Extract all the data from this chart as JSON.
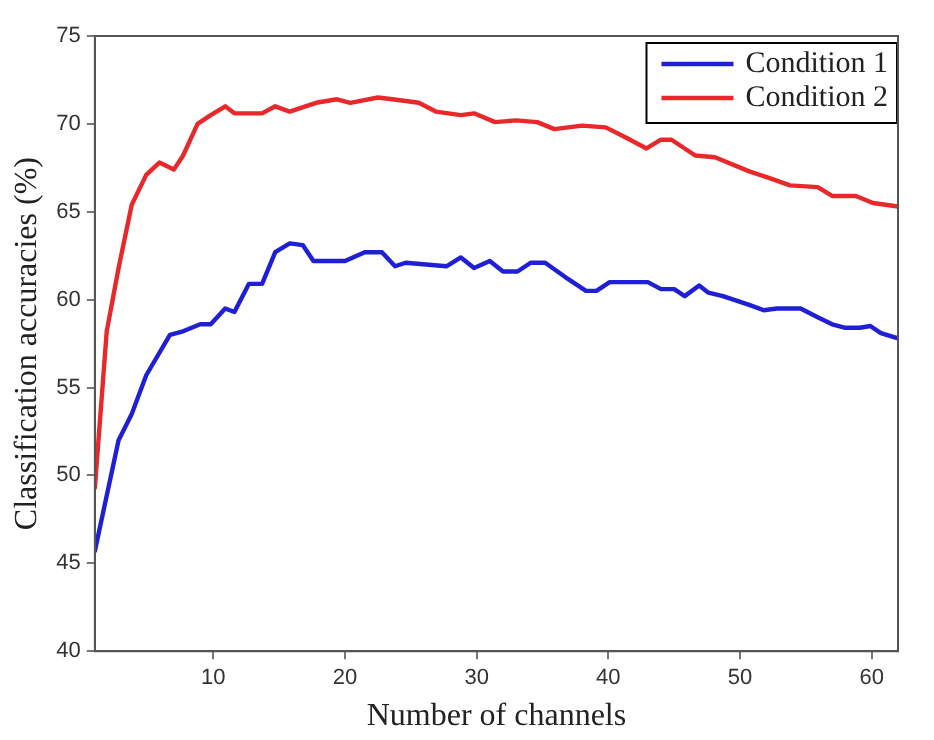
{
  "chart_data": {
    "type": "line",
    "xlabel": "Number of channels",
    "ylabel": "Classification accuracies (%)",
    "xlim": [
      1,
      62
    ],
    "xticks": [
      10,
      20,
      30,
      40,
      50,
      60
    ],
    "ylim": [
      40,
      75
    ],
    "yticks": [
      40,
      45,
      50,
      55,
      60,
      65,
      70,
      75
    ],
    "grid": false,
    "legend": "top right",
    "marker": "none",
    "line_style": "solid",
    "series": [
      {
        "name": "Condition 1",
        "color": "#1f1fd6",
        "x": [
          1,
          2.8,
          3.8,
          4.9,
          6.7,
          7.7,
          9,
          9.8,
          10.9,
          11.6,
          12.7,
          13.7,
          14.7,
          15.8,
          16.8,
          17.6,
          20,
          21.5,
          22.8,
          23.8,
          24.6,
          27.7,
          28.8,
          29.8,
          31,
          32,
          33.1,
          34.1,
          35.2,
          36.7,
          38.3,
          39.1,
          40.1,
          43,
          44,
          45,
          45.8,
          46.9,
          47.6,
          48.7,
          50.7,
          51.8,
          52.8,
          54.6,
          55.9,
          57,
          58,
          59.1,
          59.9,
          60.7,
          62
        ],
        "values": [
          45.7,
          52,
          53.5,
          55.7,
          58,
          58.2,
          58.6,
          58.6,
          59.5,
          59.3,
          60.9,
          60.9,
          62.7,
          63.2,
          63.1,
          62.2,
          62.2,
          62.7,
          62.7,
          61.9,
          62.1,
          61.9,
          62.4,
          61.8,
          62.2,
          61.6,
          61.6,
          62.1,
          62.1,
          61.3,
          60.5,
          60.5,
          61,
          61,
          60.6,
          60.6,
          60.2,
          60.8,
          60.4,
          60.2,
          59.7,
          59.4,
          59.5,
          59.5,
          59,
          58.6,
          58.4,
          58.4,
          58.5,
          58.1,
          57.8
        ]
      },
      {
        "name": "Condition 2",
        "color": "#e8282b",
        "x": [
          1,
          1.9,
          2.8,
          3.8,
          4.9,
          5.9,
          7,
          7.7,
          8.8,
          9.8,
          10.9,
          11.6,
          13.7,
          14.7,
          15.8,
          17.8,
          19.4,
          20.4,
          22.5,
          23.6,
          25.6,
          26.9,
          28.8,
          29.8,
          31.4,
          33,
          34.6,
          35.9,
          38,
          39.8,
          41.4,
          42.9,
          44,
          44.8,
          46.6,
          48.1,
          50.7,
          52.3,
          53.8,
          55.9,
          57,
          58.8,
          60.1,
          62
        ],
        "values": [
          49.3,
          58.2,
          61.8,
          65.4,
          67.1,
          67.8,
          67.4,
          68.2,
          70,
          70.5,
          71,
          70.6,
          70.6,
          71,
          70.7,
          71.2,
          71.4,
          71.2,
          71.5,
          71.4,
          71.2,
          70.7,
          70.5,
          70.6,
          70.1,
          70.2,
          70.1,
          69.7,
          69.9,
          69.8,
          69.2,
          68.6,
          69.1,
          69.1,
          68.2,
          68.1,
          67.3,
          66.9,
          66.5,
          66.4,
          65.9,
          65.9,
          65.5,
          65.3
        ]
      }
    ]
  }
}
